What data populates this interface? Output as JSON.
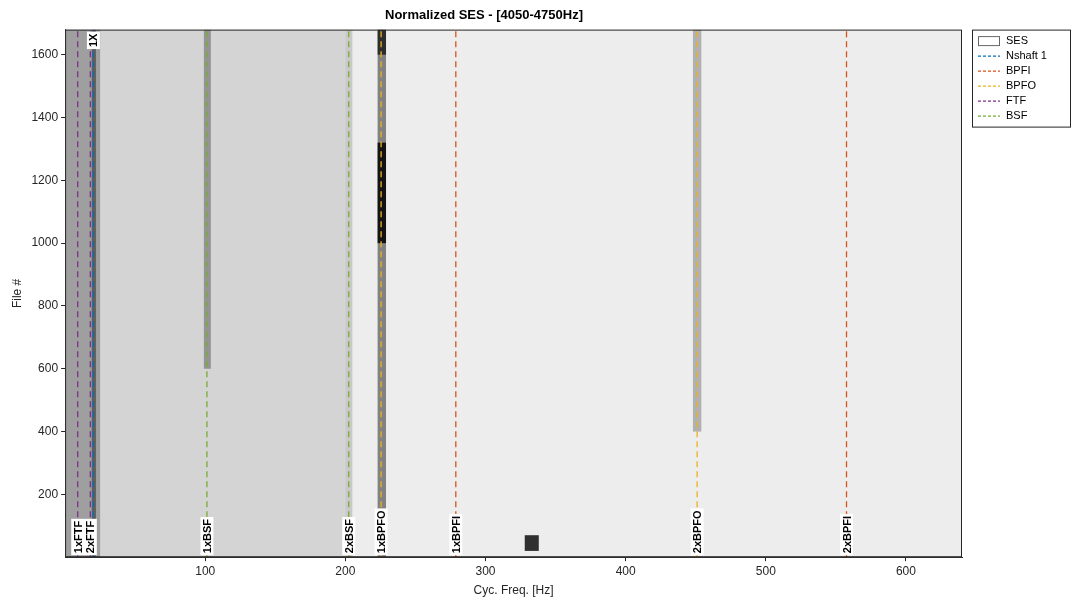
{
  "chart_data": {
    "type": "heatmap",
    "title": "Normalized SES - [4050-4750Hz]",
    "x_label": "Cyc. Freq. [Hz]",
    "y_label": "File #",
    "xlim": [
      0,
      640
    ],
    "xticks": [
      100,
      200,
      300,
      400,
      500,
      600
    ],
    "ylim": [
      0,
      1680
    ],
    "yticks": [
      200,
      400,
      600,
      800,
      1000,
      1200,
      1400,
      1600
    ],
    "grid": false,
    "legend": "right",
    "ses": {
      "name": "SES",
      "color": "#000000",
      "base_level": 0.07,
      "cells": [
        {
          "x0": 0,
          "x1": 200,
          "y0": 0,
          "y1": 1680,
          "value": 0.1
        },
        {
          "x0": 0,
          "x1": 25,
          "y0": 0,
          "y1": 1680,
          "value": 0.25
        },
        {
          "x0": 19,
          "x1": 22,
          "y0": 0,
          "y1": 1680,
          "value": 0.4
        },
        {
          "x0": 99,
          "x1": 104,
          "y0": 600,
          "y1": 1680,
          "value": 0.3
        },
        {
          "x0": 200,
          "x1": 205,
          "y0": 0,
          "y1": 1680,
          "value": 0.15
        },
        {
          "x0": 223,
          "x1": 229,
          "y0": 0,
          "y1": 1680,
          "value": 0.45
        },
        {
          "x0": 223,
          "x1": 229,
          "y0": 1000,
          "y1": 1320,
          "value": 0.85
        },
        {
          "x0": 223,
          "x1": 229,
          "y0": 1600,
          "y1": 1680,
          "value": 0.65
        },
        {
          "x0": 448,
          "x1": 454,
          "y0": 400,
          "y1": 1680,
          "value": 0.25
        },
        {
          "x0": 328,
          "x1": 338,
          "y0": 20,
          "y1": 70,
          "value": 0.8
        }
      ]
    },
    "series": [
      {
        "name": "Nshaft 1",
        "color": "#0072bd",
        "line_style": "dashed",
        "x": [
          20.2
        ],
        "labels": [
          "1X"
        ]
      },
      {
        "name": "BPFI",
        "color": "#d95319",
        "line_style": "dashed",
        "x": [
          278.8,
          557.6
        ],
        "labels": [
          "1xBPFI",
          "2xBPFI"
        ]
      },
      {
        "name": "BPFO",
        "color": "#edb120",
        "line_style": "dashed",
        "x": [
          225.5,
          451
        ],
        "labels": [
          "1xBPFO",
          "2xBPFO"
        ]
      },
      {
        "name": "FTF",
        "color": "#7e2f8e",
        "line_style": "dashed",
        "x": [
          9,
          18
        ],
        "labels": [
          "1xFTF",
          "2xFTF"
        ]
      },
      {
        "name": "BSF",
        "color": "#77ac30",
        "line_style": "dashed",
        "x": [
          101.2,
          202.4
        ],
        "labels": [
          "1xBSF",
          "2xBSF"
        ]
      }
    ]
  }
}
